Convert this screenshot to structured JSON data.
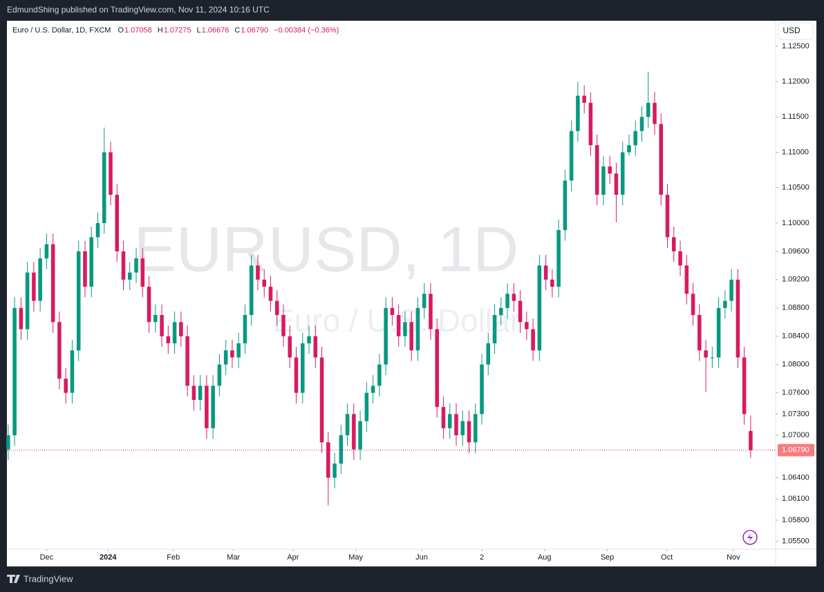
{
  "header": {
    "published": "EdmundShing published on TradingView.com, Nov 11, 2024 10:16 UTC"
  },
  "footer": {
    "brand": "TradingView"
  },
  "chart_data": {
    "type": "candlestick",
    "symbol_title": "Euro / U.S. Dollar, 1D, FXCM",
    "ohlc_legend": [
      {
        "key": "O",
        "value": "1.07058"
      },
      {
        "key": "H",
        "value": "1.07275"
      },
      {
        "key": "L",
        "value": "1.06676"
      },
      {
        "key": "C",
        "value": "1.06790"
      }
    ],
    "change": "−0.00384 (−0.36%)",
    "watermark": "EURUSD, 1D",
    "watermark_sub": "Euro / U.S. Dollar",
    "currency": "USD",
    "up_color": "#089981",
    "down_color": "#d81b60",
    "grid": false,
    "last_price": {
      "value": 1.0679,
      "label": "1.06790"
    },
    "xlim": [
      -0.2,
      119.9
    ],
    "ylim": [
      1.0539,
      1.1286
    ],
    "xticks": [
      {
        "value": 6.0,
        "label": "Dec"
      },
      {
        "value": 15.6,
        "label": "2024"
      },
      {
        "value": 25.8,
        "label": "Feb"
      },
      {
        "value": 35.2,
        "label": "Mar"
      },
      {
        "value": 44.5,
        "label": "Apr"
      },
      {
        "value": 54.3,
        "label": "May"
      },
      {
        "value": 64.6,
        "label": "Jun"
      },
      {
        "value": 74.0,
        "label": "2"
      },
      {
        "value": 83.8,
        "label": "Aug"
      },
      {
        "value": 93.6,
        "label": "Sep"
      },
      {
        "value": 102.9,
        "label": "Oct"
      },
      {
        "value": 113.3,
        "label": "Nov"
      }
    ],
    "yticks": [
      {
        "value": 1.125,
        "label": "1.12500"
      },
      {
        "value": 1.12,
        "label": "1.12000"
      },
      {
        "value": 1.115,
        "label": "1.11500"
      },
      {
        "value": 1.11,
        "label": "1.11000"
      },
      {
        "value": 1.105,
        "label": "1.10500"
      },
      {
        "value": 1.1,
        "label": "1.10000"
      },
      {
        "value": 1.096,
        "label": "1.09600"
      },
      {
        "value": 1.092,
        "label": "1.09200"
      },
      {
        "value": 1.088,
        "label": "1.08800"
      },
      {
        "value": 1.084,
        "label": "1.08400"
      },
      {
        "value": 1.08,
        "label": "1.08000"
      },
      {
        "value": 1.076,
        "label": "1.07600"
      },
      {
        "value": 1.073,
        "label": "1.07300"
      },
      {
        "value": 1.07,
        "label": "1.07000"
      },
      {
        "value": 1.064,
        "label": "1.06400"
      },
      {
        "value": 1.061,
        "label": "1.06100"
      },
      {
        "value": 1.058,
        "label": "1.05800"
      },
      {
        "value": 1.055,
        "label": "1.05500"
      }
    ],
    "candles": [
      [
        1.068,
        1.0715,
        1.0665,
        1.07
      ],
      [
        1.07,
        1.0895,
        1.0685,
        1.088
      ],
      [
        1.088,
        1.0895,
        1.0835,
        1.085
      ],
      [
        1.085,
        1.0945,
        1.0835,
        1.093
      ],
      [
        1.093,
        1.0945,
        1.0875,
        1.089
      ],
      [
        1.089,
        1.0965,
        1.0875,
        1.095
      ],
      [
        1.095,
        1.0985,
        1.0935,
        1.097
      ],
      [
        1.097,
        1.0985,
        1.0845,
        1.086
      ],
      [
        1.086,
        1.0875,
        1.0765,
        1.078
      ],
      [
        1.078,
        1.0795,
        1.0745,
        1.076
      ],
      [
        1.076,
        1.0835,
        1.0745,
        1.082
      ],
      [
        1.082,
        1.0975,
        1.0805,
        1.096
      ],
      [
        1.096,
        1.0975,
        1.0895,
        1.091
      ],
      [
        1.091,
        1.0995,
        1.0895,
        1.098
      ],
      [
        1.098,
        1.1015,
        1.0965,
        1.1
      ],
      [
        1.1,
        1.1135,
        1.0985,
        1.11
      ],
      [
        1.11,
        1.1115,
        1.1025,
        1.104
      ],
      [
        1.104,
        1.1055,
        1.0945,
        1.096
      ],
      [
        1.096,
        1.0975,
        1.0905,
        1.092
      ],
      [
        1.092,
        1.0945,
        1.0905,
        1.093
      ],
      [
        1.093,
        1.0965,
        1.0915,
        1.095
      ],
      [
        1.095,
        1.0965,
        1.0895,
        1.091
      ],
      [
        1.091,
        1.0925,
        1.0845,
        1.086
      ],
      [
        1.086,
        1.0885,
        1.0845,
        1.087
      ],
      [
        1.087,
        1.0885,
        1.0825,
        1.084
      ],
      [
        1.084,
        1.0855,
        1.0815,
        1.083
      ],
      [
        1.083,
        1.0875,
        1.0815,
        1.086
      ],
      [
        1.086,
        1.0875,
        1.0825,
        1.084
      ],
      [
        1.084,
        1.0855,
        1.0755,
        1.077
      ],
      [
        1.077,
        1.0785,
        1.0735,
        1.075
      ],
      [
        1.075,
        1.0785,
        1.0735,
        1.077
      ],
      [
        1.077,
        1.0785,
        1.0695,
        1.071
      ],
      [
        1.071,
        1.0785,
        1.0695,
        1.077
      ],
      [
        1.077,
        1.0815,
        1.0755,
        1.08
      ],
      [
        1.08,
        1.0835,
        1.0785,
        1.082
      ],
      [
        1.082,
        1.0835,
        1.0795,
        1.081
      ],
      [
        1.081,
        1.0845,
        1.0795,
        1.083
      ],
      [
        1.083,
        1.0885,
        1.0815,
        1.087
      ],
      [
        1.087,
        1.0955,
        1.0855,
        1.094
      ],
      [
        1.094,
        1.0955,
        1.0905,
        1.092
      ],
      [
        1.092,
        1.0935,
        1.0895,
        1.091
      ],
      [
        1.091,
        1.0925,
        1.0875,
        1.089
      ],
      [
        1.089,
        1.0905,
        1.0855,
        1.087
      ],
      [
        1.087,
        1.0885,
        1.0825,
        1.084
      ],
      [
        1.084,
        1.0855,
        1.0795,
        1.081
      ],
      [
        1.081,
        1.0825,
        1.0745,
        1.076
      ],
      [
        1.076,
        1.0845,
        1.0745,
        1.083
      ],
      [
        1.083,
        1.0855,
        1.0815,
        1.084
      ],
      [
        1.084,
        1.0855,
        1.0795,
        1.081
      ],
      [
        1.081,
        1.0825,
        1.0675,
        1.069
      ],
      [
        1.069,
        1.0705,
        1.0601,
        1.064
      ],
      [
        1.064,
        1.0675,
        1.0625,
        1.066
      ],
      [
        1.066,
        1.0715,
        1.0645,
        1.07
      ],
      [
        1.07,
        1.0745,
        1.0685,
        1.073
      ],
      [
        1.073,
        1.0745,
        1.0665,
        1.068
      ],
      [
        1.068,
        1.0735,
        1.0665,
        1.072
      ],
      [
        1.072,
        1.0775,
        1.0705,
        1.076
      ],
      [
        1.076,
        1.0785,
        1.0745,
        1.077
      ],
      [
        1.077,
        1.0815,
        1.0755,
        1.08
      ],
      [
        1.08,
        1.0895,
        1.0785,
        1.088
      ],
      [
        1.088,
        1.0895,
        1.0855,
        1.087
      ],
      [
        1.087,
        1.0885,
        1.0825,
        1.084
      ],
      [
        1.084,
        1.0875,
        1.0825,
        1.086
      ],
      [
        1.086,
        1.0875,
        1.0805,
        1.082
      ],
      [
        1.082,
        1.0895,
        1.0805,
        1.088
      ],
      [
        1.088,
        1.0915,
        1.0865,
        1.09
      ],
      [
        1.09,
        1.0915,
        1.0835,
        1.085
      ],
      [
        1.085,
        1.0865,
        1.0725,
        1.074
      ],
      [
        1.074,
        1.0755,
        1.0695,
        1.071
      ],
      [
        1.071,
        1.0745,
        1.0695,
        1.073
      ],
      [
        1.073,
        1.0745,
        1.0685,
        1.07
      ],
      [
        1.07,
        1.0735,
        1.0685,
        1.072
      ],
      [
        1.072,
        1.0735,
        1.0675,
        1.069
      ],
      [
        1.069,
        1.0745,
        1.0675,
        1.073
      ],
      [
        1.073,
        1.0815,
        1.0715,
        1.08
      ],
      [
        1.08,
        1.0845,
        1.0785,
        1.083
      ],
      [
        1.083,
        1.0885,
        1.0815,
        1.087
      ],
      [
        1.087,
        1.0895,
        1.0855,
        1.088
      ],
      [
        1.088,
        1.0915,
        1.0865,
        1.09
      ],
      [
        1.09,
        1.0915,
        1.0875,
        1.089
      ],
      [
        1.089,
        1.0905,
        1.0845,
        1.086
      ],
      [
        1.086,
        1.0875,
        1.0835,
        1.085
      ],
      [
        1.085,
        1.0865,
        1.0805,
        1.082
      ],
      [
        1.082,
        1.0955,
        1.0805,
        1.094
      ],
      [
        1.094,
        1.0955,
        1.0905,
        1.092
      ],
      [
        1.092,
        1.0935,
        1.0895,
        1.091
      ],
      [
        1.091,
        1.1005,
        1.0895,
        1.099
      ],
      [
        1.099,
        1.1075,
        1.0975,
        1.106
      ],
      [
        1.106,
        1.1145,
        1.1045,
        1.113
      ],
      [
        1.113,
        1.12,
        1.1115,
        1.118
      ],
      [
        1.118,
        1.1195,
        1.1155,
        1.117
      ],
      [
        1.117,
        1.1185,
        1.1095,
        1.111
      ],
      [
        1.111,
        1.1125,
        1.1025,
        1.104
      ],
      [
        1.104,
        1.1095,
        1.1025,
        1.108
      ],
      [
        1.108,
        1.1095,
        1.1055,
        1.107
      ],
      [
        1.107,
        1.1085,
        1.1001,
        1.104
      ],
      [
        1.104,
        1.1115,
        1.1025,
        1.11
      ],
      [
        1.11,
        1.1125,
        1.1095,
        1.111
      ],
      [
        1.111,
        1.1145,
        1.1095,
        1.113
      ],
      [
        1.113,
        1.1165,
        1.1115,
        1.115
      ],
      [
        1.115,
        1.1214,
        1.1135,
        1.117
      ],
      [
        1.117,
        1.1185,
        1.1125,
        1.114
      ],
      [
        1.114,
        1.1155,
        1.1025,
        1.104
      ],
      [
        1.104,
        1.1055,
        1.0965,
        1.098
      ],
      [
        1.098,
        1.0995,
        1.0945,
        1.096
      ],
      [
        1.096,
        1.0975,
        1.0925,
        1.094
      ],
      [
        1.094,
        1.0955,
        1.0885,
        1.09
      ],
      [
        1.09,
        1.0915,
        1.0855,
        1.087
      ],
      [
        1.087,
        1.0885,
        1.0805,
        1.082
      ],
      [
        1.082,
        1.0835,
        1.0761,
        1.081
      ],
      [
        1.081,
        1.0825,
        1.0795,
        1.081
      ],
      [
        1.081,
        1.0895,
        1.0795,
        1.088
      ],
      [
        1.088,
        1.0905,
        1.0865,
        1.089
      ],
      [
        1.089,
        1.0935,
        1.0875,
        1.092
      ],
      [
        1.092,
        1.0935,
        1.0795,
        1.081
      ],
      [
        1.081,
        1.0825,
        1.0715,
        1.073
      ],
      [
        1.0706,
        1.0728,
        1.0668,
        1.0679
      ]
    ]
  }
}
